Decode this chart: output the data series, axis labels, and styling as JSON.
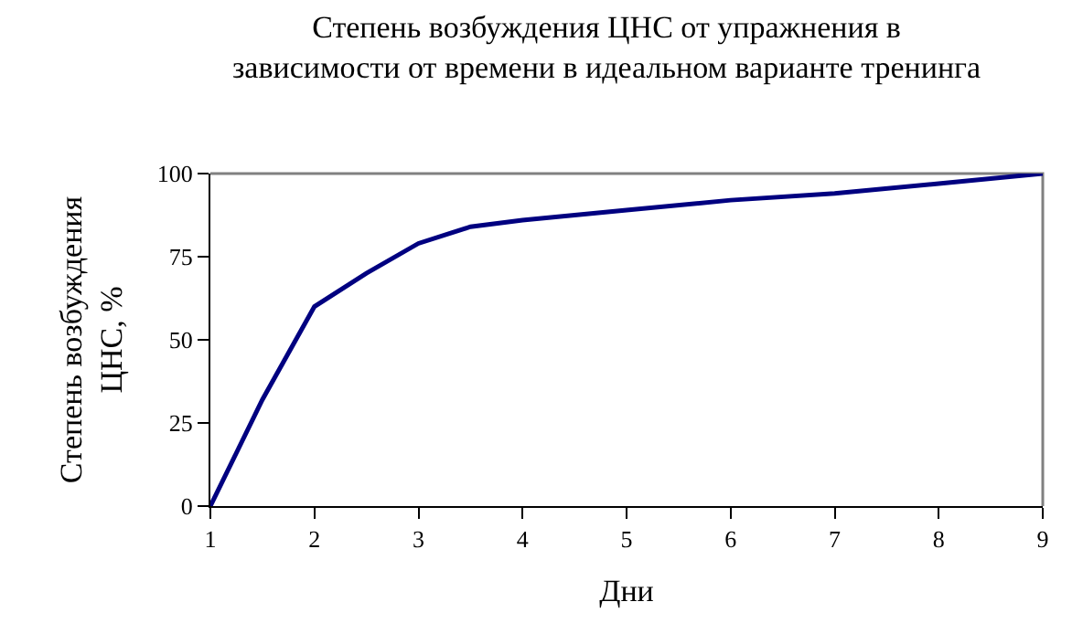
{
  "chart_data": {
    "type": "line",
    "title": "Степень возбуждения ЦНС от упражнения в\nзависимости от времени в идеальном варианте тренинга",
    "xlabel": "Дни",
    "ylabel": "Степень возбуждения\nЦНС, %",
    "x": [
      1,
      1.5,
      2,
      2.5,
      3,
      3.5,
      4,
      5,
      6,
      7,
      8,
      9
    ],
    "series": [
      {
        "color": "#000080",
        "values": [
          0,
          32,
          60,
          70,
          79,
          84,
          86,
          89,
          92,
          94,
          97,
          100
        ]
      }
    ],
    "xlim": [
      1,
      9
    ],
    "xticks": [
      1,
      2,
      3,
      4,
      5,
      6,
      7,
      8,
      9
    ],
    "ylim": [
      0,
      100
    ],
    "yticks": [
      0,
      25,
      50,
      75,
      100
    ],
    "grid": false,
    "legend": false,
    "marker": "none",
    "line_style": "solid"
  }
}
